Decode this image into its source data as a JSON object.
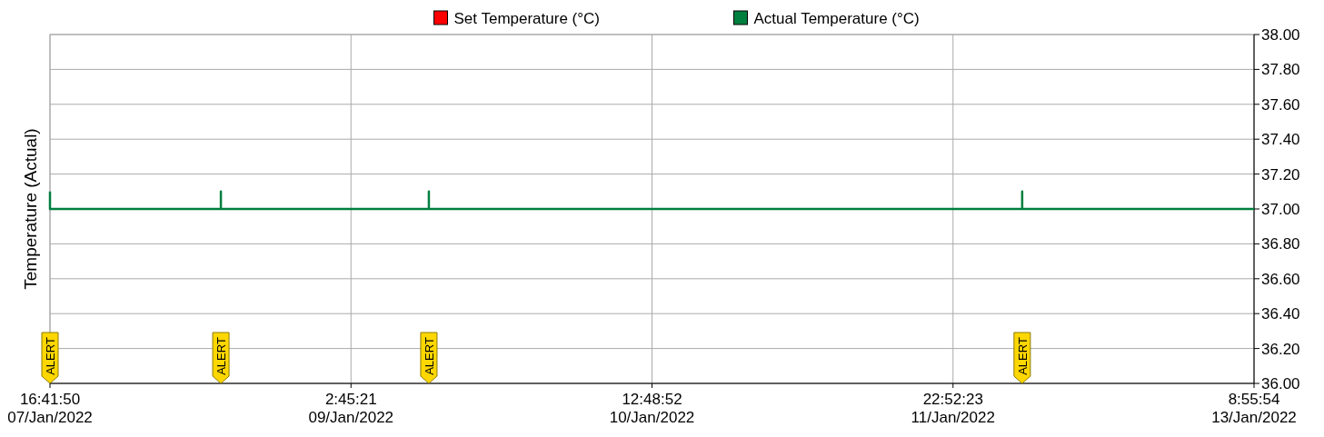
{
  "chart_data": {
    "type": "line",
    "ylabel": "Temperature (Actual)",
    "xlim": [
      "2022-01-07T16:41:50",
      "2022-01-13T08:55:54"
    ],
    "xticks": [
      {
        "value": "2022-01-07T16:41:50",
        "label": "16:41:50\n07/Jan/2022"
      },
      {
        "value": "2022-01-09T02:45:21",
        "label": "2:45:21\n09/Jan/2022"
      },
      {
        "value": "2022-01-10T12:48:52",
        "label": "12:48:52\n10/Jan/2022"
      },
      {
        "value": "2022-01-11T22:52:23",
        "label": "22:52:23\n11/Jan/2022"
      },
      {
        "value": "2022-01-13T08:55:54",
        "label": "8:55:54\n13/Jan/2022"
      }
    ],
    "ylim": [
      36,
      38
    ],
    "yticks": [
      {
        "value": 36,
        "label": "36.00"
      },
      {
        "value": 36.2,
        "label": "36.20"
      },
      {
        "value": 36.4,
        "label": "36.40"
      },
      {
        "value": 36.6,
        "label": "36.60"
      },
      {
        "value": 36.8,
        "label": "36.80"
      },
      {
        "value": 37,
        "label": "37.00"
      },
      {
        "value": 37.2,
        "label": "37.20"
      },
      {
        "value": 37.4,
        "label": "37.40"
      },
      {
        "value": 37.6,
        "label": "37.60"
      },
      {
        "value": 37.8,
        "label": "37.80"
      },
      {
        "value": 38,
        "label": "38.00"
      }
    ],
    "grid": true,
    "legend": "top",
    "marker": "none",
    "line_style": "solid",
    "series": [
      {
        "name": "Set Temperature (°C)",
        "color": "#ff0000"
      },
      {
        "name": "Actual Temperature (°C)",
        "color": "#007f3f",
        "x": [
          "2022-01-07T16:41:50",
          "2022-01-07T16:41:50",
          "2022-01-08T12:02:00",
          "2022-01-08T12:02:00",
          "2022-01-08T12:02:00",
          "2022-01-09T11:34:00",
          "2022-01-09T11:34:00",
          "2022-01-09T11:34:00",
          "2022-01-12T06:42:00",
          "2022-01-12T06:42:00",
          "2022-01-12T06:42:00",
          "2022-01-13T08:55:54"
        ],
        "values": [
          37.1,
          37,
          37,
          37.1,
          37,
          37,
          37.1,
          37,
          37,
          37.1,
          37,
          37
        ]
      }
    ],
    "annotations": [
      "ALERT",
      "ALERT",
      "ALERT",
      "ALERT"
    ]
  }
}
